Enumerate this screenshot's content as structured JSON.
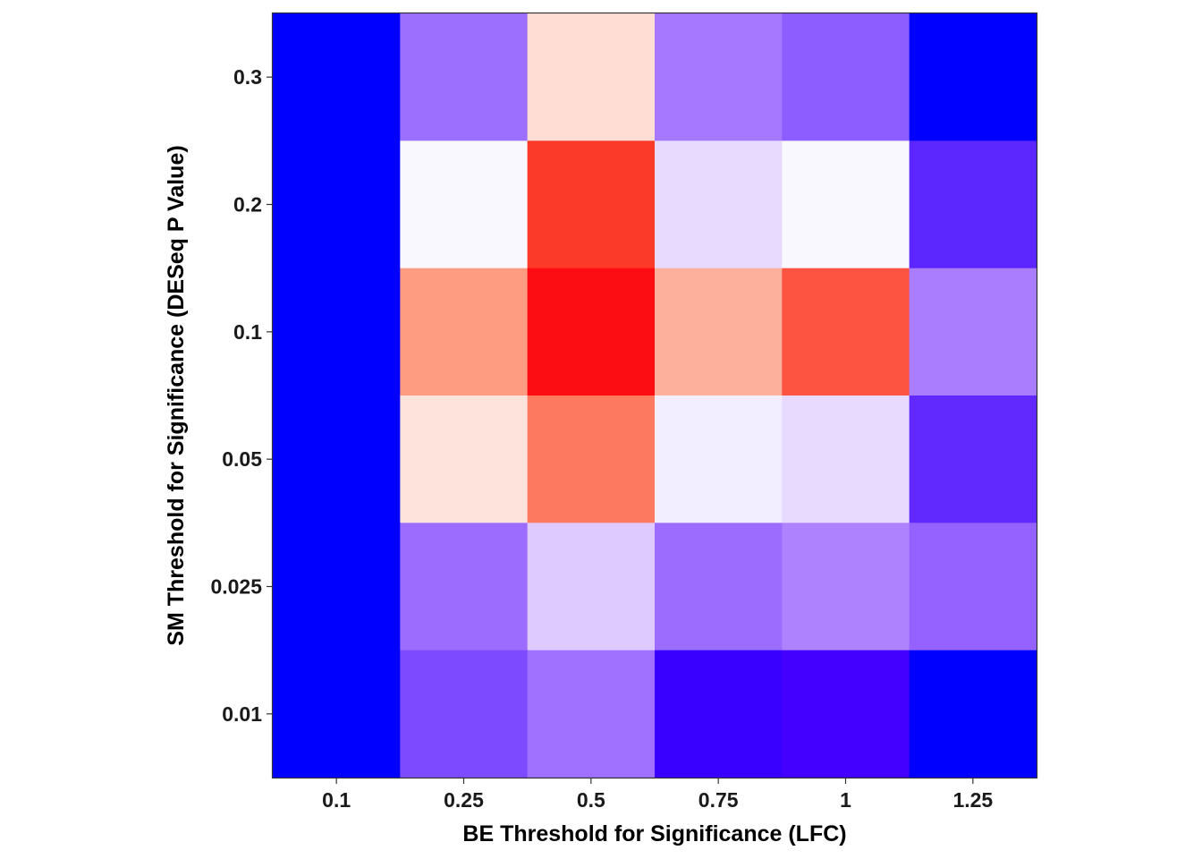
{
  "chart_data": {
    "type": "heatmap",
    "title": "",
    "xlabel": "BE Threshold for Significance (LFC)",
    "ylabel": "SM Threshold for Significance (DESeq P Value)",
    "x_categories": [
      "0.1",
      "0.25",
      "0.5",
      "0.75",
      "1",
      "1.25"
    ],
    "y_categories": [
      "0.01",
      "0.025",
      "0.05",
      "0.1",
      "0.2",
      "0.3"
    ],
    "cells": [
      {
        "x": "0.1",
        "y": "0.3",
        "color": "#0000FF"
      },
      {
        "x": "0.25",
        "y": "0.3",
        "color": "#9D6FFF"
      },
      {
        "x": "0.5",
        "y": "0.3",
        "color": "#FFDDD4"
      },
      {
        "x": "0.75",
        "y": "0.3",
        "color": "#A578FF"
      },
      {
        "x": "1",
        "y": "0.3",
        "color": "#8E5DFF"
      },
      {
        "x": "1.25",
        "y": "0.3",
        "color": "#0000FF"
      },
      {
        "x": "0.1",
        "y": "0.2",
        "color": "#0000FF"
      },
      {
        "x": "0.25",
        "y": "0.2",
        "color": "#FAF8FF"
      },
      {
        "x": "0.5",
        "y": "0.2",
        "color": "#FC3A2A"
      },
      {
        "x": "0.75",
        "y": "0.2",
        "color": "#E8DAFF"
      },
      {
        "x": "1",
        "y": "0.2",
        "color": "#FAF8FF"
      },
      {
        "x": "1.25",
        "y": "0.2",
        "color": "#5B26FF"
      },
      {
        "x": "0.1",
        "y": "0.1",
        "color": "#0000FF"
      },
      {
        "x": "0.25",
        "y": "0.1",
        "color": "#FD9C81"
      },
      {
        "x": "0.5",
        "y": "0.1",
        "color": "#FC0D14"
      },
      {
        "x": "0.75",
        "y": "0.1",
        "color": "#FDB09B"
      },
      {
        "x": "1",
        "y": "0.1",
        "color": "#FD5441"
      },
      {
        "x": "1.25",
        "y": "0.1",
        "color": "#AA7DFF"
      },
      {
        "x": "0.1",
        "y": "0.05",
        "color": "#0000FF"
      },
      {
        "x": "0.25",
        "y": "0.05",
        "color": "#FEE3DC"
      },
      {
        "x": "0.5",
        "y": "0.05",
        "color": "#FD7A61"
      },
      {
        "x": "0.75",
        "y": "0.05",
        "color": "#F2EEFF"
      },
      {
        "x": "1",
        "y": "0.05",
        "color": "#E8DAFF"
      },
      {
        "x": "1.25",
        "y": "0.05",
        "color": "#6229FF"
      },
      {
        "x": "0.1",
        "y": "0.025",
        "color": "#0000FF"
      },
      {
        "x": "0.25",
        "y": "0.025",
        "color": "#9C6CFF"
      },
      {
        "x": "0.5",
        "y": "0.025",
        "color": "#DFCAFF"
      },
      {
        "x": "0.75",
        "y": "0.025",
        "color": "#9C6CFF"
      },
      {
        "x": "1",
        "y": "0.025",
        "color": "#AE82FF"
      },
      {
        "x": "1.25",
        "y": "0.025",
        "color": "#9662FF"
      },
      {
        "x": "0.1",
        "y": "0.01",
        "color": "#0000FF"
      },
      {
        "x": "0.25",
        "y": "0.01",
        "color": "#7E4AFF"
      },
      {
        "x": "0.5",
        "y": "0.01",
        "color": "#A070FF"
      },
      {
        "x": "0.75",
        "y": "0.01",
        "color": "#3A00FF"
      },
      {
        "x": "1",
        "y": "0.01",
        "color": "#4300FF"
      },
      {
        "x": "1.25",
        "y": "0.01",
        "color": "#0000FF"
      }
    ],
    "grid": false,
    "legend": "none"
  },
  "colors": {
    "background": "#FFFFFF",
    "panel_border": "#333333",
    "tick_text": "#1A1A1A",
    "axis_title": "#000000"
  }
}
